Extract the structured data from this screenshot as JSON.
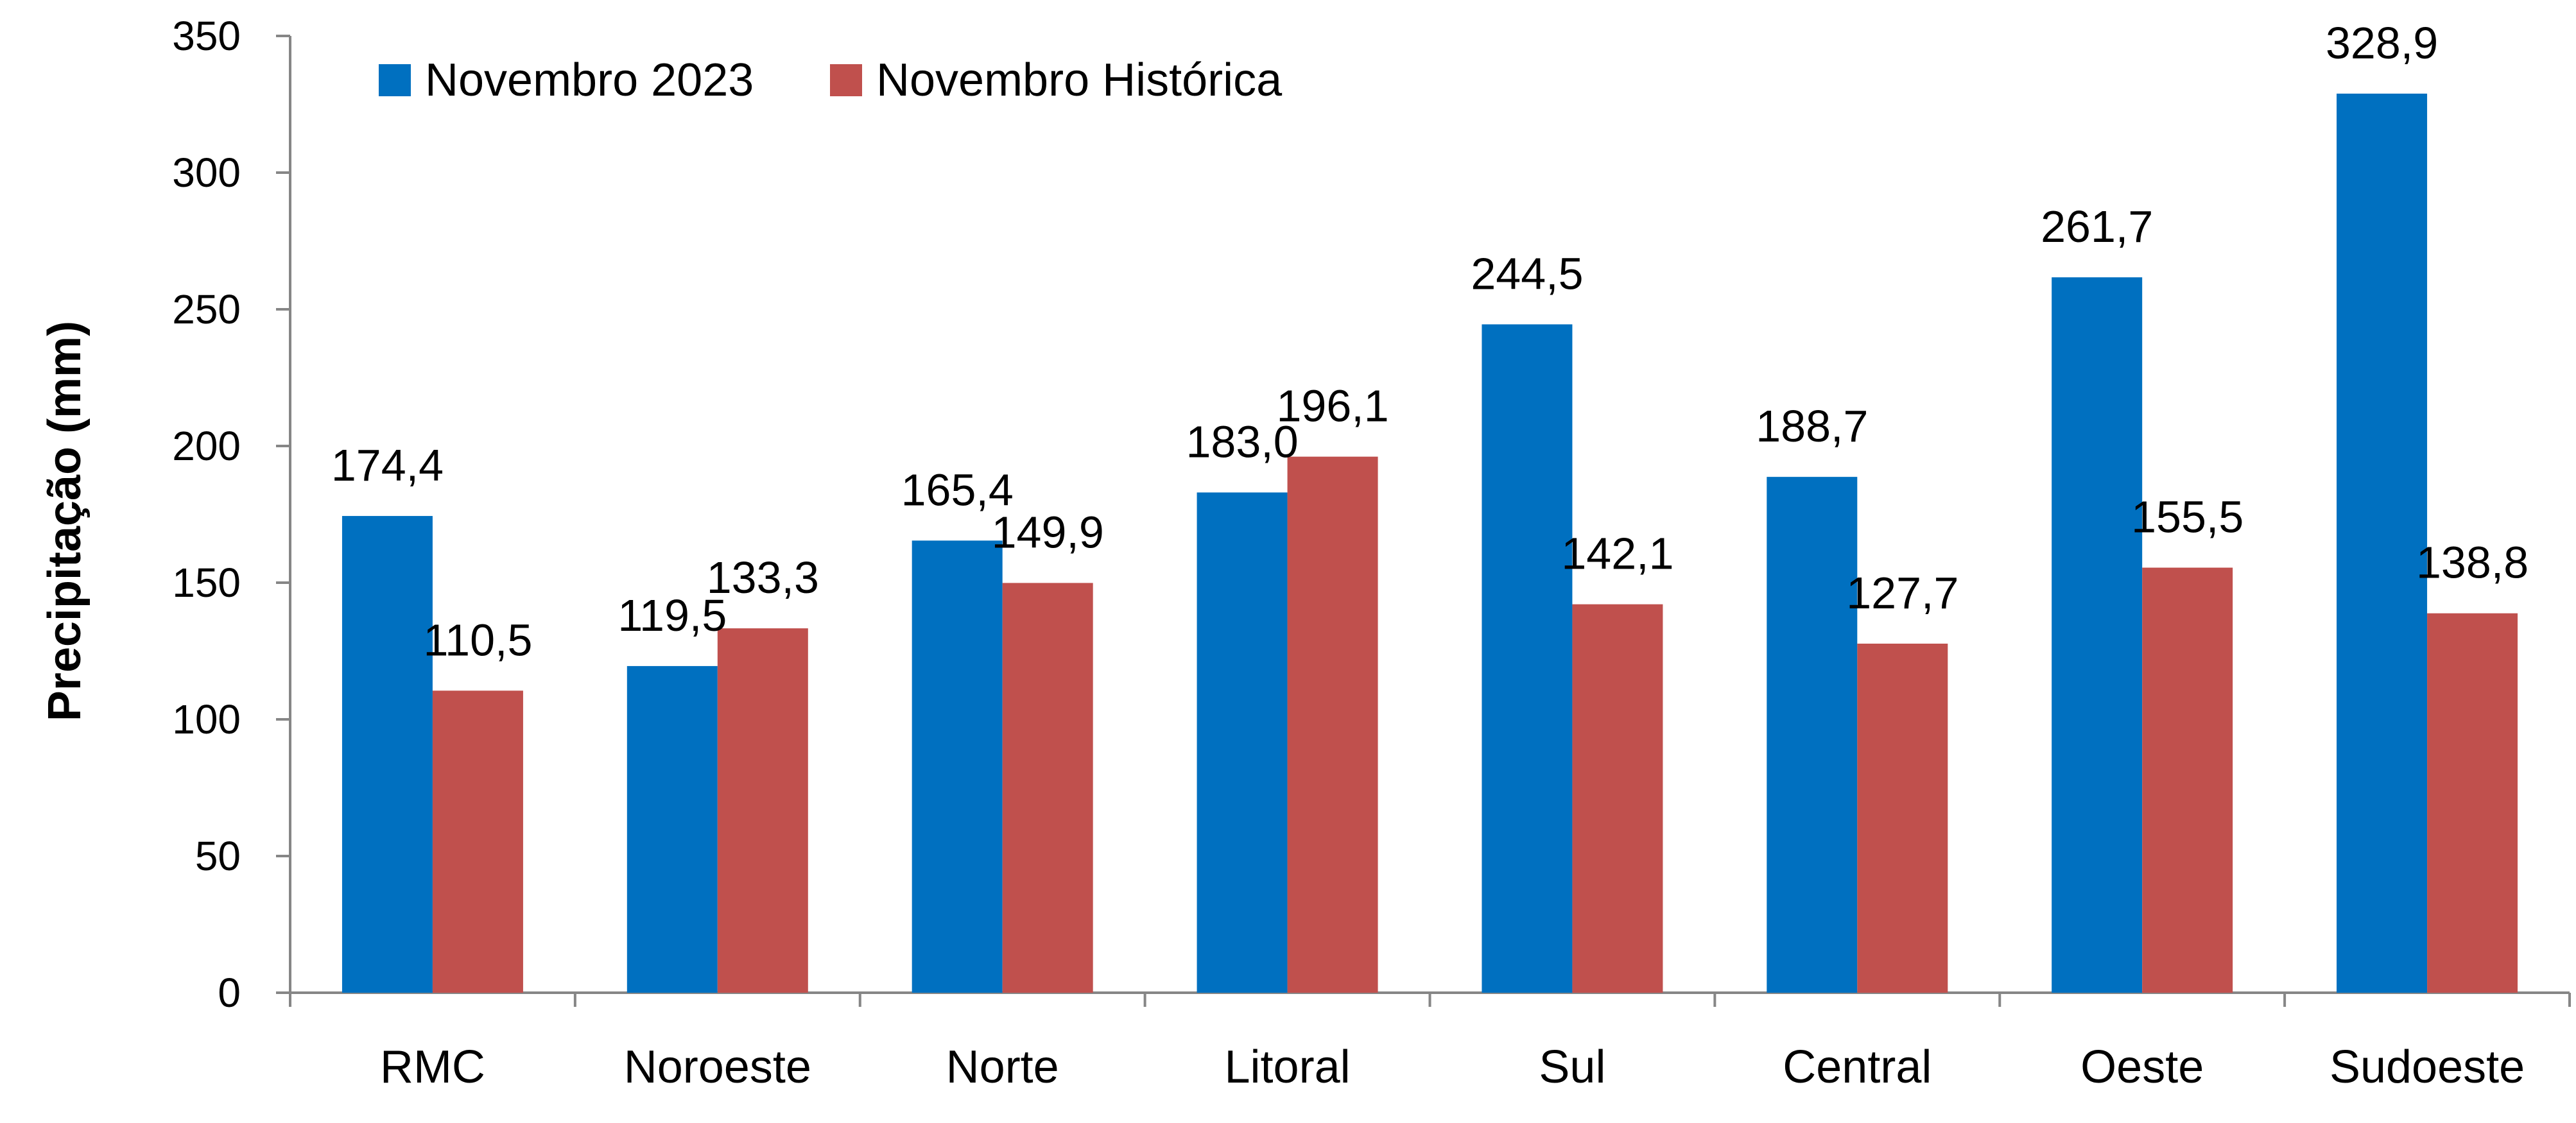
{
  "chart_data": {
    "type": "bar",
    "title": "",
    "xlabel": "",
    "ylabel": "Precipitação (mm)",
    "ylim": [
      0,
      350
    ],
    "yticks": [
      "0",
      "50",
      "100",
      "150",
      "200",
      "250",
      "300",
      "350"
    ],
    "categories": [
      "RMC",
      "Noroeste",
      "Norte",
      "Litoral",
      "Sul",
      "Central",
      "Oeste",
      "Sudoeste"
    ],
    "series": [
      {
        "name": "Novembro 2023",
        "color": "#0070C0",
        "values": [
          174.4,
          119.5,
          165.4,
          183.0,
          244.5,
          188.7,
          261.7,
          328.9
        ],
        "labels": [
          "174,4",
          "119,5",
          "165,4",
          "183,0",
          "244,5",
          "188,7",
          "261,7",
          "328,9"
        ]
      },
      {
        "name": "Novembro Histórica",
        "color": "#C0504D",
        "values": [
          110.5,
          133.3,
          149.9,
          196.1,
          142.1,
          127.7,
          155.5,
          138.8
        ],
        "labels": [
          "110,5",
          "133,3",
          "149,9",
          "196,1",
          "142,1",
          "127,7",
          "155,5",
          "138,8"
        ]
      }
    ],
    "grid": false,
    "legend_position": "top-left"
  }
}
